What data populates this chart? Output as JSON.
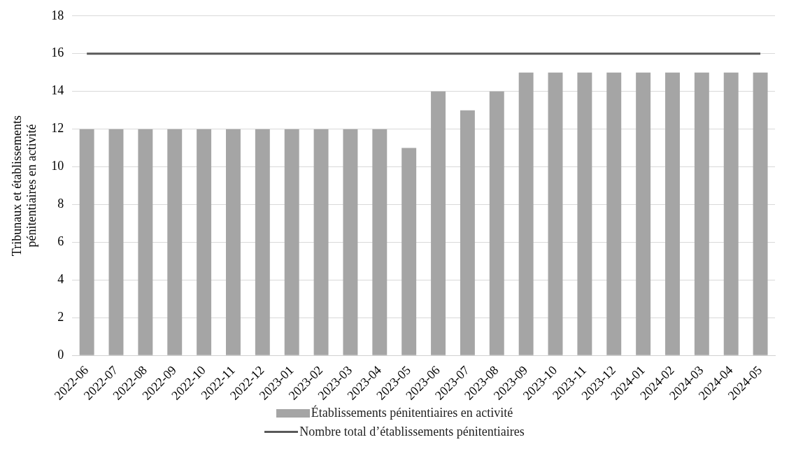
{
  "chart_data": {
    "type": "bar",
    "ylabel": "Tribunaux et établissements pénitentiaires en activité",
    "categories": [
      "2022-06",
      "2022-07",
      "2022-08",
      "2022-09",
      "2022-10",
      "2022-11",
      "2022-12",
      "2023-01",
      "2023-02",
      "2023-03",
      "2023-04",
      "2023-05",
      "2023-06",
      "2023-07",
      "2023-08",
      "2023-09",
      "2023-10",
      "2023-11",
      "2023-12",
      "2024-01",
      "2024-02",
      "2024-03",
      "2024-04",
      "2024-05"
    ],
    "series": [
      {
        "name": "Établissements pénitentiaires en activité",
        "color": "#a5a5a5",
        "values": [
          12,
          12,
          12,
          12,
          12,
          12,
          12,
          12,
          12,
          12,
          12,
          11,
          14,
          13,
          14,
          15,
          15,
          15,
          15,
          15,
          15,
          15,
          15,
          15
        ]
      },
      {
        "name": "Nombre total d’établissements pénitentiaires",
        "type": "line",
        "color": "#595959",
        "values": [
          16,
          16,
          16,
          16,
          16,
          16,
          16,
          16,
          16,
          16,
          16,
          16,
          16,
          16,
          16,
          16,
          16,
          16,
          16,
          16,
          16,
          16,
          16,
          16
        ]
      }
    ],
    "ylim": [
      0,
      18
    ],
    "yticks": [
      0,
      2,
      4,
      6,
      8,
      10,
      12,
      14,
      16,
      18
    ],
    "grid": "y",
    "legend": "bottom",
    "marker": "none"
  }
}
